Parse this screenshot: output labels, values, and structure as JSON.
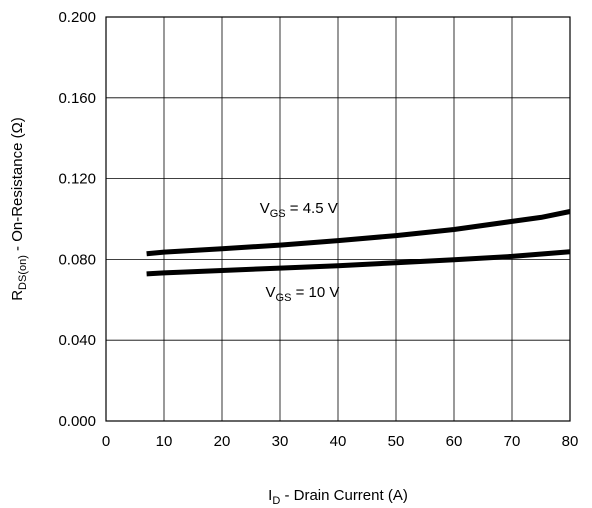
{
  "chart_data": {
    "type": "line",
    "title": "",
    "xlabel": {
      "main": "I",
      "sub": "D",
      "rest": " - Drain Current (A)"
    },
    "ylabel": {
      "main": "R",
      "sub": "DS(on)",
      "rest": " - On-Resistance (Ω)"
    },
    "xlim": [
      0,
      80
    ],
    "ylim": [
      0.0,
      0.2
    ],
    "x_ticks": [
      "0",
      "10",
      "20",
      "30",
      "40",
      "50",
      "60",
      "70",
      "80"
    ],
    "y_ticks": [
      "0.000",
      "0.040",
      "0.080",
      "0.120",
      "0.160",
      "0.200"
    ],
    "grid": true,
    "series": [
      {
        "name": {
          "main": "V",
          "sub": "GS",
          "rest": " = 4.5 V"
        },
        "label_pos": {
          "x": 26.5,
          "y": 0.103
        },
        "x": [
          7,
          10,
          20,
          30,
          40,
          50,
          60,
          70,
          75,
          80
        ],
        "y": [
          0.0828,
          0.0836,
          0.0853,
          0.0871,
          0.0893,
          0.0918,
          0.0948,
          0.0988,
          0.1008,
          0.1037
        ]
      },
      {
        "name": {
          "main": "V",
          "sub": "GS",
          "rest": " = 10 V"
        },
        "label_pos": {
          "x": 27.5,
          "y": 0.0615
        },
        "x": [
          7,
          10,
          20,
          30,
          40,
          50,
          60,
          70,
          80
        ],
        "y": [
          0.0728,
          0.0733,
          0.0745,
          0.0757,
          0.0769,
          0.0783,
          0.0798,
          0.0815,
          0.0838
        ]
      }
    ]
  }
}
